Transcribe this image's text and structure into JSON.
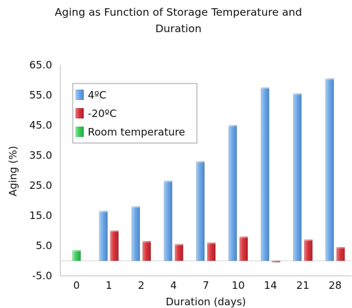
{
  "chart_data": {
    "type": "bar",
    "title": "Aging as Function of Storage Temperature and Duration",
    "xlabel": "Duration (days)",
    "ylabel": "Aging (%)",
    "ylim": [
      -5,
      65
    ],
    "yticks": [
      "65.0",
      "55.0",
      "45.0",
      "35.0",
      "25.0",
      "15.0",
      "5.0",
      "-5.0"
    ],
    "ytick_values": [
      65,
      55,
      45,
      35,
      25,
      15,
      5,
      -5
    ],
    "categories": [
      "0",
      "1",
      "2",
      "4",
      "7",
      "10",
      "14",
      "21",
      "28"
    ],
    "legend_position": "top-left",
    "grid": false,
    "series": [
      {
        "name": "4ºC",
        "color": "#6fa8e6",
        "values": [
          null,
          16.5,
          18,
          26.5,
          33,
          45,
          57.5,
          55.5,
          60.5
        ]
      },
      {
        "name": "-20ºC",
        "color": "#d9333c",
        "values": [
          null,
          10,
          6.5,
          5.5,
          6,
          8,
          -0.5,
          7,
          4.5
        ]
      },
      {
        "name": "Room temperature",
        "color": "#3ccf5a",
        "values": [
          3.5,
          null,
          null,
          null,
          null,
          null,
          null,
          null,
          null
        ]
      }
    ]
  }
}
